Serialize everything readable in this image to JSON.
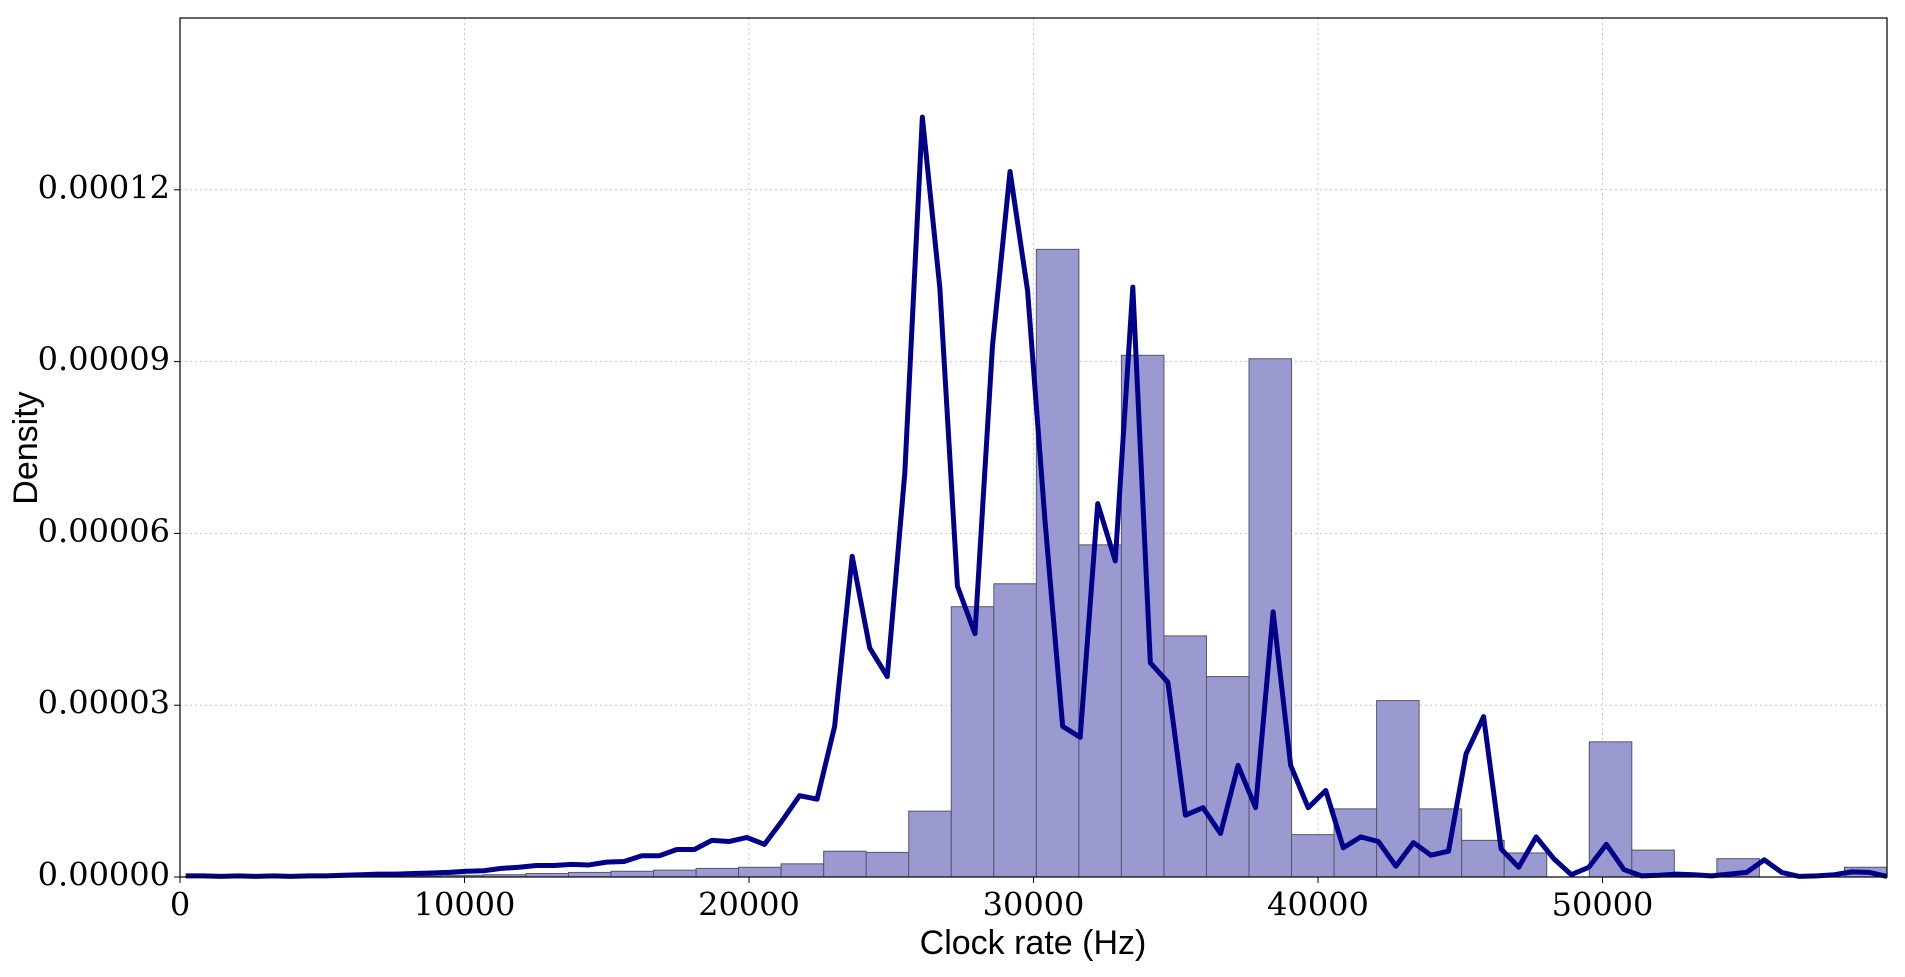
{
  "chart_data": {
    "type": "histogram",
    "xlabel": "Clock rate (Hz)",
    "ylabel": "Density",
    "bins": [
      200,
      1695,
      3190,
      4685,
      6180,
      7675,
      9170,
      10665,
      12160,
      13655,
      15150,
      16645,
      18140,
      19635,
      21130,
      22625,
      24120,
      25615,
      27110,
      28605,
      30100,
      31595,
      33090,
      34585,
      36080,
      37575,
      39070,
      40565,
      42060,
      43555,
      45050,
      46545,
      48040,
      49535,
      51030,
      52525,
      54020,
      55515,
      57010,
      58505,
      60000
    ],
    "values": [
      1e-07,
      1e-07,
      1e-07,
      1e-07,
      2e-07,
      2e-07,
      3e-07,
      4e-07,
      6e-07,
      8e-07,
      1e-06,
      1.2e-06,
      1.5e-06,
      1.7e-06,
      2.3e-06,
      4.5e-06,
      4.3e-06,
      1.15e-05,
      4.72e-05,
      5.12e-05,
      0.0001096,
      5.8e-05,
      9.11e-05,
      4.21e-05,
      3.5e-05,
      9.05e-05,
      7.4e-06,
      1.19e-05,
      3.08e-05,
      1.19e-05,
      6.4e-06,
      4.2e-06,
      0,
      2.36e-05,
      4.7e-06,
      0,
      3.2e-06,
      0,
      0,
      1.7e-06
    ],
    "color": "#9a9ad0",
    "edgecolor": "#55556a",
    "line": {
      "color": "#00008b",
      "x": [
        200,
        816,
        1433,
        2049,
        2666,
        3282,
        3899,
        4515,
        5132,
        5748,
        6365,
        6981,
        7598,
        8214,
        8831,
        9447,
        10064,
        10680,
        11297,
        11913,
        12530,
        13146,
        13763,
        14379,
        14996,
        15612,
        16229,
        16845,
        17462,
        18078,
        18695,
        19311,
        19928,
        20544,
        21161,
        21777,
        22394,
        23010,
        23627,
        24243,
        24860,
        25476,
        26093,
        26709,
        27326,
        27942,
        28559,
        29175,
        29792,
        30408,
        31025,
        31641,
        32258,
        32874,
        33491,
        34107,
        34724,
        35340,
        35957,
        36573,
        37190,
        37806,
        38423,
        39039,
        39656,
        40272,
        40889,
        41505,
        42122,
        42738,
        43355,
        43971,
        44588,
        45204,
        45821,
        46437,
        47054,
        47670,
        48287,
        48903,
        49520,
        50136,
        50753,
        51369,
        51986,
        52602,
        53219,
        53835,
        54452,
        55068,
        55685,
        56301,
        56918,
        57534,
        58151,
        58767,
        59384,
        60000
      ],
      "values": [
        2e-07,
        2e-07,
        1e-07,
        2e-07,
        1e-07,
        2e-07,
        1e-07,
        2e-07,
        2e-07,
        3e-07,
        4e-07,
        5e-07,
        5e-07,
        6e-07,
        7e-07,
        8e-07,
        1e-06,
        1.1e-06,
        1.5e-06,
        1.7e-06,
        2e-06,
        2e-06,
        2.2e-06,
        2.1e-06,
        2.6e-06,
        2.7e-06,
        3.7e-06,
        3.7e-06,
        4.8e-06,
        4.8e-06,
        6.4e-06,
        6.2e-06,
        6.9e-06,
        5.7e-06,
        9.8e-06,
        1.42e-05,
        1.36e-05,
        2.63e-05,
        5.6e-05,
        4e-05,
        3.5e-05,
        7.05e-05,
        0.0001327,
        0.0001028,
        5.08e-05,
        4.25e-05,
        9.28e-05,
        0.0001232,
        0.0001024,
        6.2e-05,
        2.63e-05,
        2.44e-05,
        6.52e-05,
        5.52e-05,
        0.000103,
        3.74e-05,
        3.4e-05,
        1.08e-05,
        1.21e-05,
        7.6e-06,
        1.95e-05,
        1.21e-05,
        4.63e-05,
        1.95e-05,
        1.21e-05,
        1.51e-05,
        5.1e-06,
        7e-06,
        6.2e-06,
        1.9e-06,
        6e-06,
        3.8e-06,
        4.5e-06,
        2.15e-05,
        2.8e-05,
        4.9e-06,
        1.7e-06,
        7e-06,
        3.2e-06,
        4e-07,
        1.7e-06,
        5.7e-06,
        1.3e-06,
        2e-07,
        3e-07,
        5e-07,
        4e-07,
        2e-07,
        5e-07,
        8e-07,
        3e-06,
        8e-07,
        1e-07,
        2e-07,
        4e-07,
        9e-07,
        8e-07,
        1e-07
      ]
    },
    "xlim": [
      0,
      60000
    ],
    "xticks": [
      0,
      10000,
      20000,
      30000,
      40000,
      50000
    ],
    "ylim": [
      0,
      0.00015
    ],
    "yticks": [
      {
        "value": 0,
        "label": "0.00000"
      },
      {
        "value": 3e-05,
        "label": "0.00003"
      },
      {
        "value": 6e-05,
        "label": "0.00006"
      },
      {
        "value": 9e-05,
        "label": "0.00009"
      },
      {
        "value": 0.00012,
        "label": "0.00012"
      }
    ],
    "grid": true
  }
}
